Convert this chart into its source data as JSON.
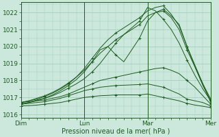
{
  "title": "",
  "xlabel": "Pression niveau de la mer( hPa )",
  "ylim": [
    1015.8,
    1022.6
  ],
  "yticks": [
    1016,
    1017,
    1018,
    1019,
    1020,
    1021,
    1022
  ],
  "xlim": [
    0,
    72
  ],
  "xtick_positions": [
    0,
    24,
    48,
    72
  ],
  "xtick_labels": [
    "Dim",
    "Lun",
    "Mar",
    "Mer"
  ],
  "bg_color": "#cce8dc",
  "grid_color": "#99ccbb",
  "line_color": "#1a5c1a",
  "series": [
    {
      "x": [
        0,
        3,
        6,
        9,
        12,
        15,
        18,
        21,
        24,
        27,
        30,
        33,
        36,
        39,
        42,
        45,
        48,
        51,
        54,
        57,
        60,
        63,
        66,
        69,
        72
      ],
      "y": [
        1016.6,
        1016.7,
        1016.8,
        1016.95,
        1017.1,
        1017.3,
        1017.55,
        1017.8,
        1018.1,
        1018.5,
        1019.0,
        1019.6,
        1020.2,
        1020.7,
        1021.1,
        1021.5,
        1022.3,
        1022.1,
        1021.6,
        1021.0,
        1020.2,
        1019.2,
        1018.3,
        1017.5,
        1016.8
      ]
    },
    {
      "x": [
        0,
        3,
        6,
        9,
        12,
        15,
        18,
        21,
        24,
        27,
        30,
        33,
        36,
        39,
        42,
        45,
        48,
        51,
        54,
        57,
        60,
        63,
        66,
        69,
        72
      ],
      "y": [
        1016.6,
        1016.7,
        1016.85,
        1016.95,
        1017.15,
        1017.4,
        1017.7,
        1018.05,
        1018.5,
        1019.1,
        1019.8,
        1020.0,
        1019.5,
        1019.1,
        1019.8,
        1020.5,
        1021.5,
        1022.0,
        1022.2,
        1021.8,
        1021.3,
        1020.0,
        1018.8,
        1017.8,
        1016.7
      ]
    },
    {
      "x": [
        0,
        3,
        6,
        9,
        12,
        15,
        18,
        21,
        24,
        27,
        30,
        33,
        36,
        39,
        42,
        45,
        48,
        51,
        54,
        57,
        60,
        63,
        66,
        69,
        72
      ],
      "y": [
        1016.7,
        1016.8,
        1016.9,
        1017.05,
        1017.25,
        1017.5,
        1017.8,
        1018.2,
        1018.7,
        1019.3,
        1019.9,
        1020.4,
        1020.8,
        1021.1,
        1021.4,
        1021.7,
        1022.1,
        1022.3,
        1022.4,
        1021.9,
        1021.2,
        1020.0,
        1018.9,
        1017.8,
        1016.9
      ]
    },
    {
      "x": [
        0,
        3,
        6,
        9,
        12,
        15,
        18,
        21,
        24,
        27,
        30,
        33,
        36,
        39,
        42,
        45,
        48,
        51,
        54,
        57,
        60,
        63,
        66,
        69,
        72
      ],
      "y": [
        1016.7,
        1016.8,
        1016.95,
        1017.1,
        1017.3,
        1017.55,
        1017.85,
        1018.2,
        1018.6,
        1019.1,
        1019.6,
        1020.0,
        1020.4,
        1020.7,
        1021.0,
        1021.3,
        1021.8,
        1022.0,
        1022.1,
        1021.7,
        1021.0,
        1019.8,
        1018.8,
        1017.7,
        1016.8
      ]
    },
    {
      "x": [
        0,
        3,
        6,
        9,
        12,
        15,
        18,
        21,
        24,
        27,
        30,
        33,
        36,
        39,
        42,
        45,
        48,
        51,
        54,
        57,
        60,
        63,
        66,
        69,
        72
      ],
      "y": [
        1016.7,
        1016.75,
        1016.8,
        1016.85,
        1016.95,
        1017.05,
        1017.2,
        1017.4,
        1017.6,
        1017.8,
        1018.0,
        1018.1,
        1018.2,
        1018.3,
        1018.4,
        1018.5,
        1018.6,
        1018.7,
        1018.75,
        1018.6,
        1018.4,
        1018.0,
        1017.6,
        1017.1,
        1016.6
      ]
    },
    {
      "x": [
        0,
        3,
        6,
        9,
        12,
        15,
        18,
        21,
        24,
        27,
        30,
        33,
        36,
        39,
        42,
        45,
        48,
        51,
        54,
        57,
        60,
        63,
        66,
        69,
        72
      ],
      "y": [
        1016.6,
        1016.65,
        1016.7,
        1016.75,
        1016.85,
        1016.95,
        1017.1,
        1017.25,
        1017.4,
        1017.5,
        1017.6,
        1017.65,
        1017.7,
        1017.72,
        1017.74,
        1017.76,
        1017.8,
        1017.7,
        1017.6,
        1017.4,
        1017.2,
        1016.9,
        1016.8,
        1016.7,
        1016.5
      ]
    },
    {
      "x": [
        0,
        3,
        6,
        9,
        12,
        15,
        18,
        21,
        24,
        27,
        30,
        33,
        36,
        39,
        42,
        45,
        48,
        51,
        54,
        57,
        60,
        63,
        66,
        69,
        72
      ],
      "y": [
        1016.5,
        1016.52,
        1016.55,
        1016.6,
        1016.65,
        1016.7,
        1016.8,
        1016.9,
        1017.0,
        1017.05,
        1017.1,
        1017.12,
        1017.15,
        1017.15,
        1017.15,
        1017.15,
        1017.2,
        1017.1,
        1017.0,
        1016.9,
        1016.8,
        1016.65,
        1016.55,
        1016.48,
        1016.4
      ]
    }
  ]
}
